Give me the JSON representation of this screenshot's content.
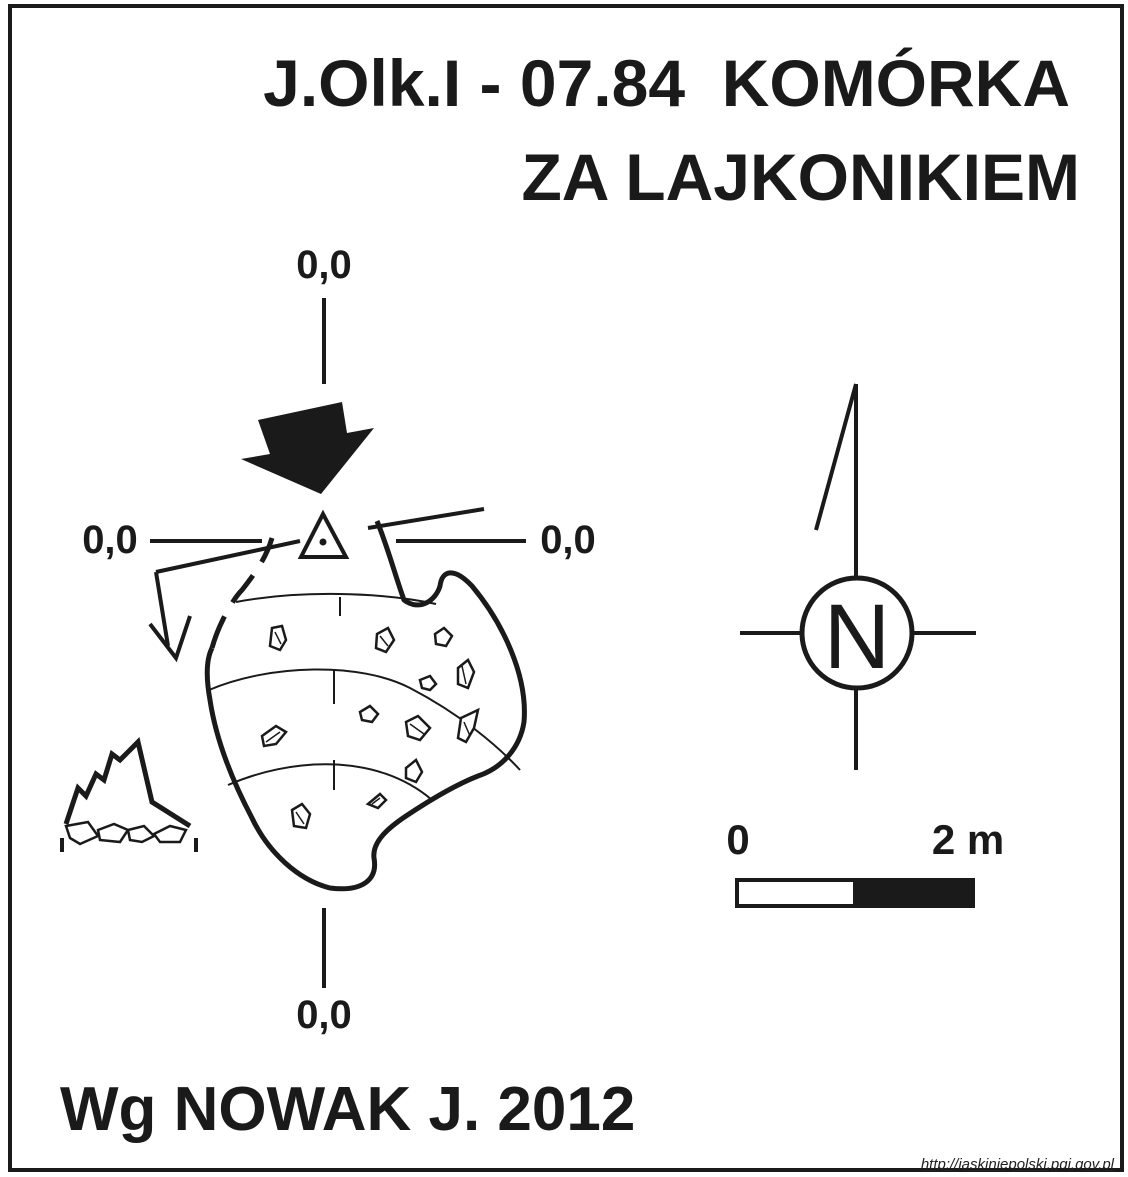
{
  "title": {
    "line1": "J.Olk.I - 07.84  KOMÓRKA",
    "line2": "ZA LAJKONIKIEM"
  },
  "survey_datum": {
    "top": "0,0",
    "left": "0,0",
    "right": "0,0",
    "bottom": "0,0"
  },
  "north_arrow": {
    "letter": "N"
  },
  "scale_bar": {
    "start_label": "0",
    "end_label": "2 m"
  },
  "credit": "Wg NOWAK J. 2012",
  "source_url": "http://jaskiniepolski.pgi.gov.pl",
  "colors": {
    "ink": "#1a1a1a",
    "paper": "#ffffff"
  }
}
